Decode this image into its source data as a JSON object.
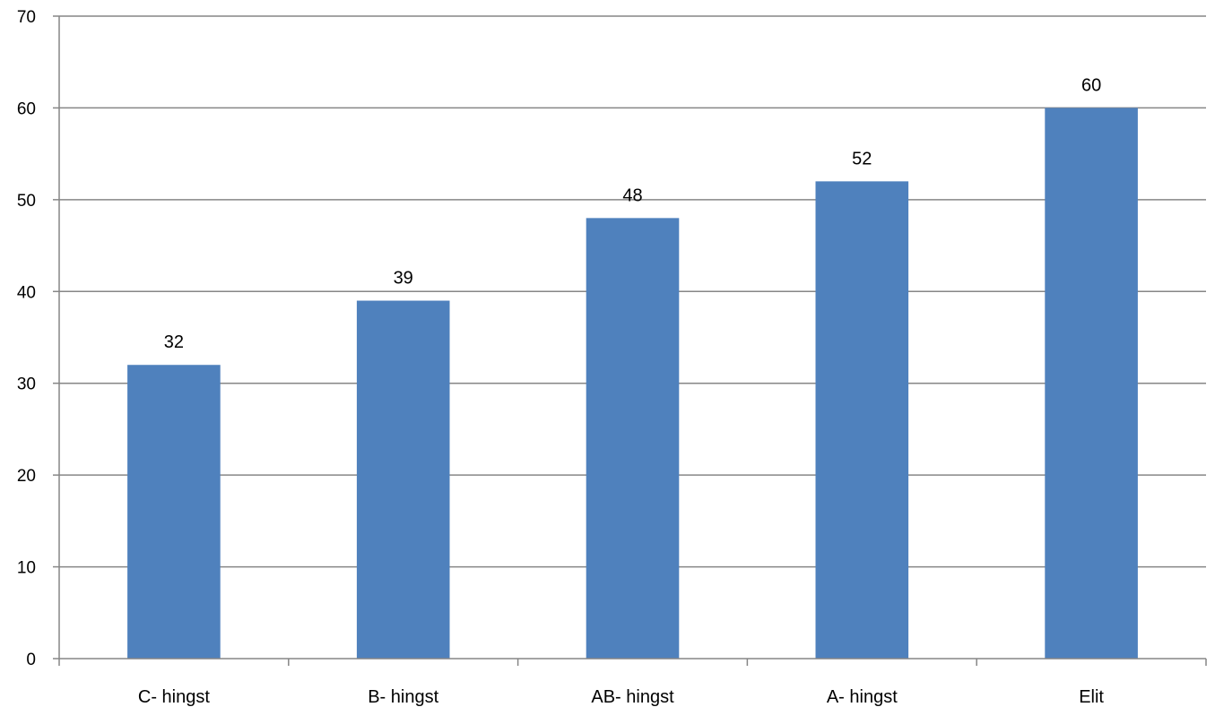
{
  "chart_data": {
    "type": "bar",
    "title": "",
    "xlabel": "",
    "ylabel": "",
    "categories": [
      "C- hingst",
      "B- hingst",
      "AB- hingst",
      "A- hingst",
      "Elit"
    ],
    "values": [
      32,
      39,
      48,
      52,
      60
    ],
    "data_labels": [
      "32",
      "39",
      "48",
      "52",
      "60"
    ],
    "ylim": [
      0,
      70
    ],
    "yticks": [
      0,
      10,
      20,
      30,
      40,
      50,
      60,
      70
    ],
    "ytick_labels": [
      "0",
      "10",
      "20",
      "30",
      "40",
      "50",
      "60",
      "70"
    ],
    "grid": true,
    "legend": "none",
    "bar_color": "#4f81bd",
    "gridline_color": "#868686"
  }
}
